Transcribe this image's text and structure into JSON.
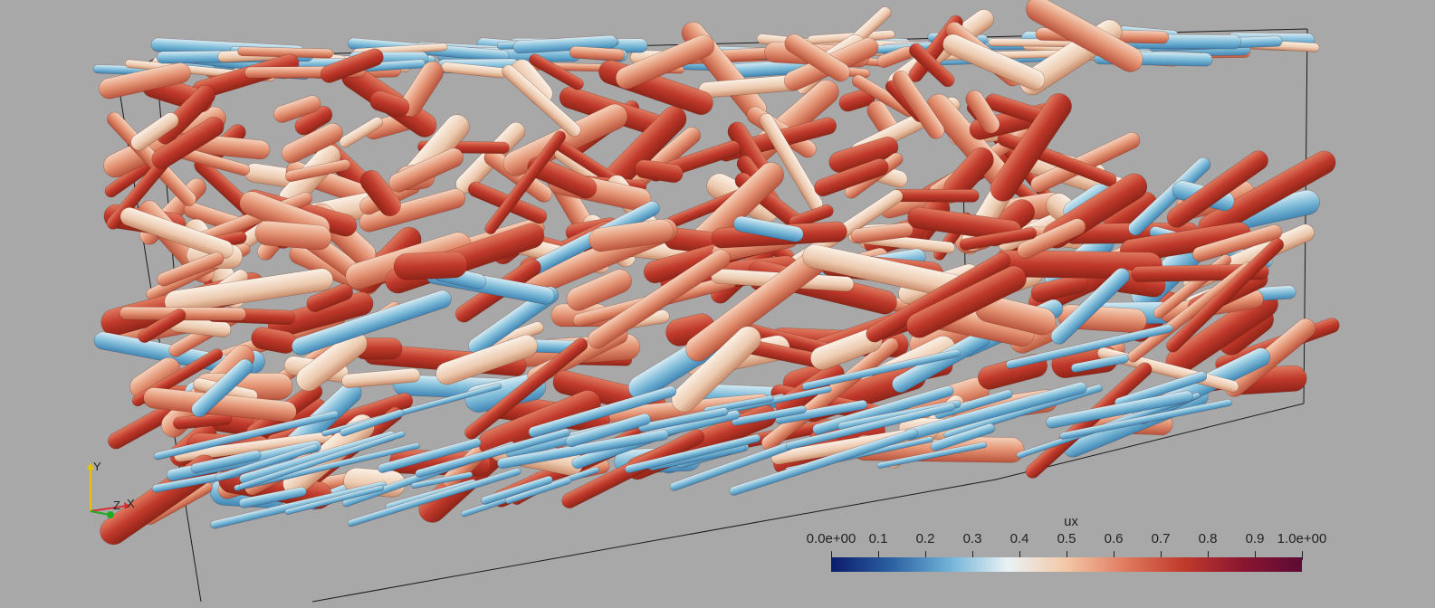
{
  "scene": {
    "background": "#a8a8a8",
    "description_colors": {
      "low": "#08306b",
      "mid_low": "#6baed6",
      "mid": "#f7f7f7",
      "mid_high": "#ef6548",
      "high": "#67001f"
    }
  },
  "scalar_bar": {
    "title": "ux",
    "ticks": [
      "0.0e+00",
      "0.1",
      "0.2",
      "0.3",
      "0.4",
      "0.5",
      "0.6",
      "0.7",
      "0.8",
      "0.9",
      "1.0e+00"
    ],
    "range": [
      0.0,
      1.0
    ],
    "colormap": [
      "#0b1b6b",
      "#2a5fa0",
      "#6fb1d6",
      "#e9f3f5",
      "#f3c7a6",
      "#e07a5f",
      "#c03a2b",
      "#8a1530",
      "#5b0b35"
    ]
  },
  "axes_gizmo": {
    "y_label": "Y",
    "x_label": "X",
    "z_label": "Z",
    "y_color": "#e6c300",
    "x_color": "#d32f2f",
    "z_color": "#22aa22"
  }
}
